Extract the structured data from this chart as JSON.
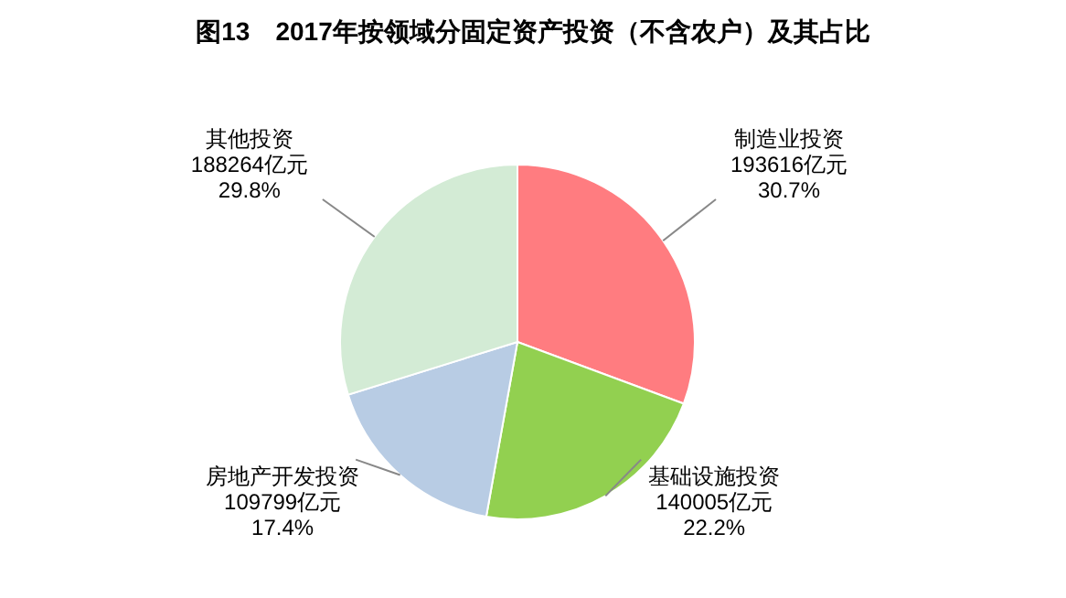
{
  "chart_data": {
    "type": "pie",
    "title": "图13　2017年按领域分固定资产投资（不含农户）及其占比",
    "categories": [
      "制造业投资",
      "基础设施投资",
      "房地产开发投资",
      "其他投资"
    ],
    "values": [
      193616,
      140005,
      109799,
      188264
    ],
    "value_labels": [
      "193616亿元\n30.7%",
      "140005亿元\n22.2%",
      "109799亿元\n17.4%",
      "188264亿元\n29.8%"
    ],
    "colors": [
      "#ff7c80",
      "#92d050",
      "#b8cce4",
      "#d3ebd5"
    ]
  }
}
